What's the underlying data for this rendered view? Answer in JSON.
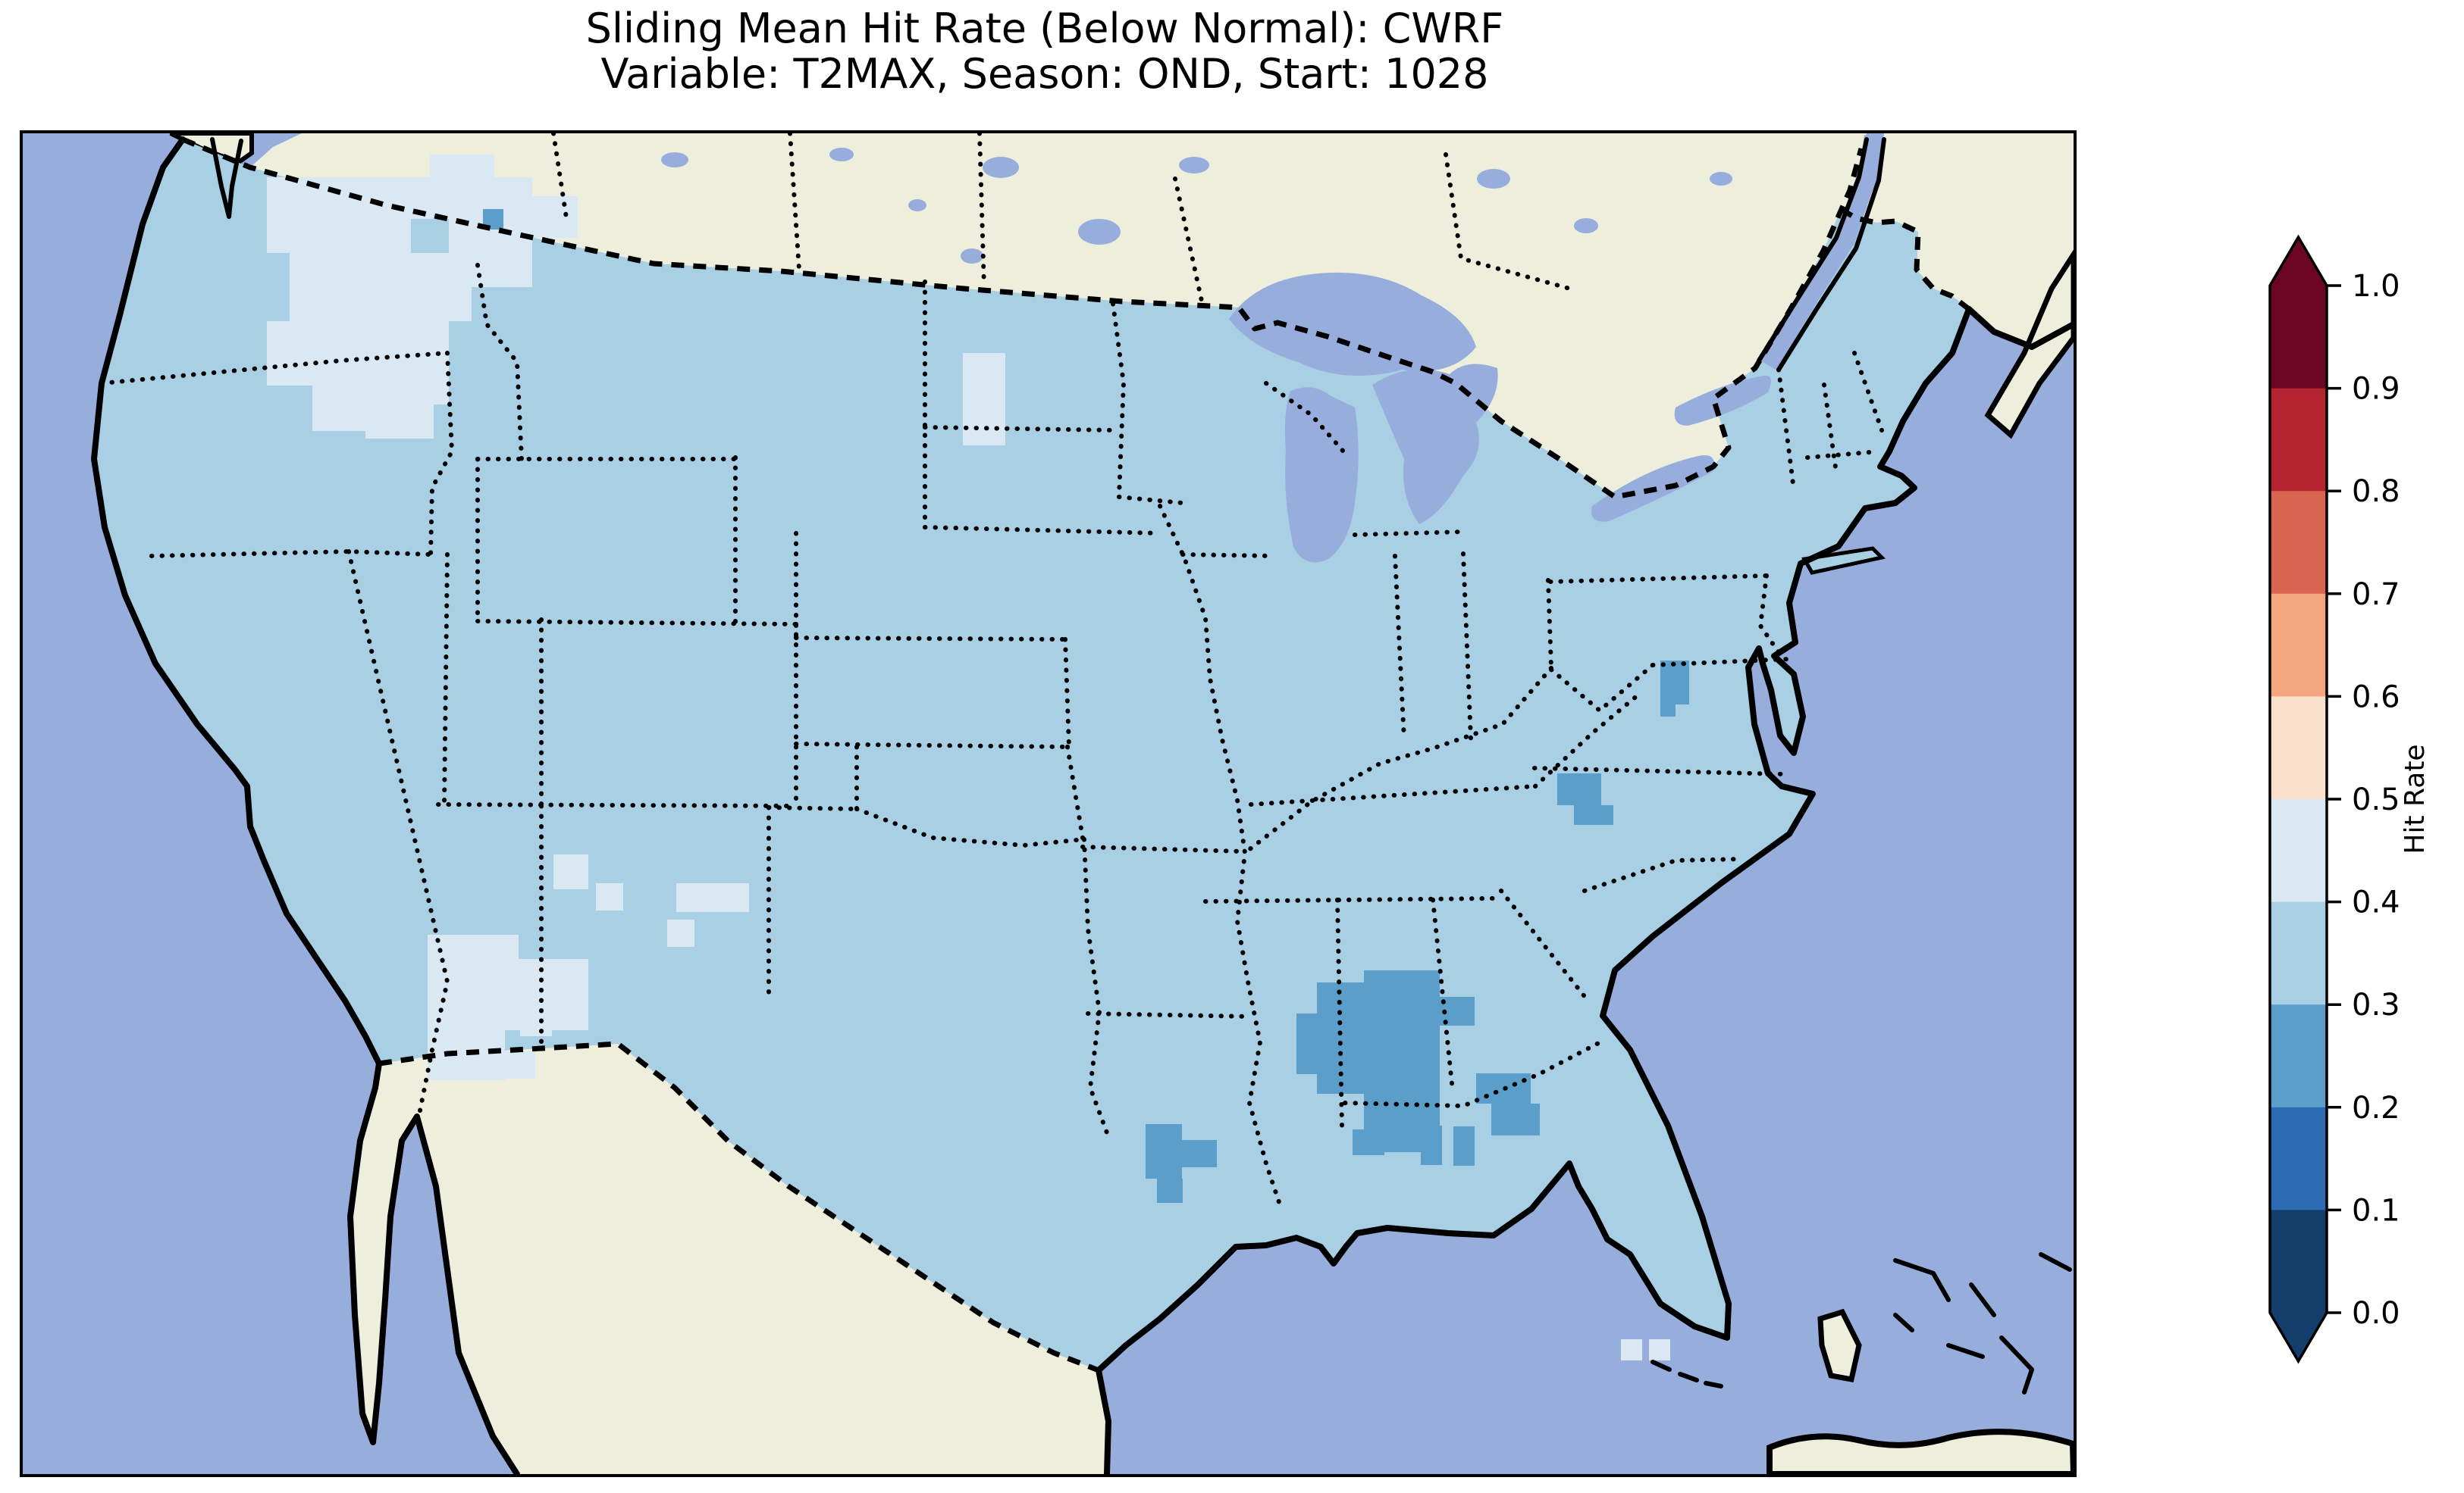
{
  "title": {
    "line1": "Sliding Mean Hit Rate (Below Normal): CWRF",
    "line2": "Variable: T2MAX, Season: OND, Start: 1028"
  },
  "colorbar": {
    "label": "Hit Rate",
    "ticks": [
      "1.0",
      "0.9",
      "0.8",
      "0.7",
      "0.6",
      "0.5",
      "0.4",
      "0.3",
      "0.2",
      "0.1",
      "0.0"
    ],
    "bins": [
      {
        "range": "0.9-1.0",
        "color": "#6a0623"
      },
      {
        "range": "0.8-0.9",
        "color": "#b52230"
      },
      {
        "range": "0.7-0.8",
        "color": "#d96450"
      },
      {
        "range": "0.6-0.7",
        "color": "#f5a67f"
      },
      {
        "range": "0.5-0.6",
        "color": "#fbe0cd"
      },
      {
        "range": "0.4-0.5",
        "color": "#d9e8f2"
      },
      {
        "range": "0.3-0.4",
        "color": "#a8cfe3"
      },
      {
        "range": "0.2-0.3",
        "color": "#5b9ec9"
      },
      {
        "range": "0.1-0.2",
        "color": "#2c6cb2"
      },
      {
        "range": "0.0-0.1",
        "color": "#133d6b"
      }
    ],
    "over_color": "#6a0623",
    "under_color": "#133d6b"
  },
  "map": {
    "base_bin": "0.3-0.4",
    "colors": {
      "ocean": "#97aedd",
      "lake": "#97aedd",
      "land": "#eeeedc",
      "us_base": "#a8cfe3",
      "outline": "#000000"
    },
    "patches": [
      {
        "bin": "0.4-0.5",
        "cells": [
          [
            322,
            58,
            190,
            100
          ],
          [
            352,
            158,
            240,
            90
          ],
          [
            412,
            248,
            150,
            110
          ],
          [
            512,
            58,
            160,
            55
          ],
          [
            562,
            113,
            110,
            90
          ],
          [
            322,
            248,
            90,
            85
          ],
          [
            382,
            333,
            120,
            60
          ],
          [
            452,
            358,
            90,
            45
          ],
          [
            672,
            83,
            60,
            55
          ],
          [
            537,
            28,
            85,
            35
          ],
          [
            1240,
            290,
            56,
            122
          ],
          [
            534,
            1058,
            120,
            92
          ],
          [
            594,
            1090,
            152,
            94
          ],
          [
            534,
            1150,
            102,
            100
          ],
          [
            564,
            1212,
            112,
            36
          ],
          [
            656,
            1120,
            42,
            72
          ],
          [
            700,
            952,
            46,
            46
          ],
          [
            756,
            990,
            36,
            36
          ],
          [
            862,
            990,
            96,
            38
          ],
          [
            850,
            1038,
            36,
            36
          ],
          [
            2108,
            1592,
            28,
            28
          ],
          [
            2145,
            1592,
            28,
            28
          ]
        ]
      },
      {
        "bin": "0.2-0.3",
        "cells": [
          [
            1707,
            1121,
            62,
            147
          ],
          [
            1769,
            1105,
            100,
            240
          ],
          [
            1831,
            1140,
            84,
            38
          ],
          [
            1754,
            1315,
            42,
            34
          ],
          [
            1844,
            1310,
            28,
            52
          ],
          [
            1680,
            1162,
            28,
            80
          ],
          [
            1917,
            1241,
            72,
            40
          ],
          [
            1937,
            1281,
            64,
            42
          ],
          [
            1887,
            1311,
            28,
            52
          ],
          [
            1481,
            1308,
            48,
            72
          ],
          [
            1529,
            1329,
            46,
            36
          ],
          [
            1496,
            1380,
            34,
            32
          ],
          [
            2160,
            696,
            38,
            58
          ],
          [
            2160,
            754,
            20,
            16
          ],
          [
            2024,
            845,
            58,
            42
          ],
          [
            2046,
            887,
            52,
            26
          ],
          [
            607,
            100,
            27,
            27
          ]
        ]
      }
    ]
  }
}
